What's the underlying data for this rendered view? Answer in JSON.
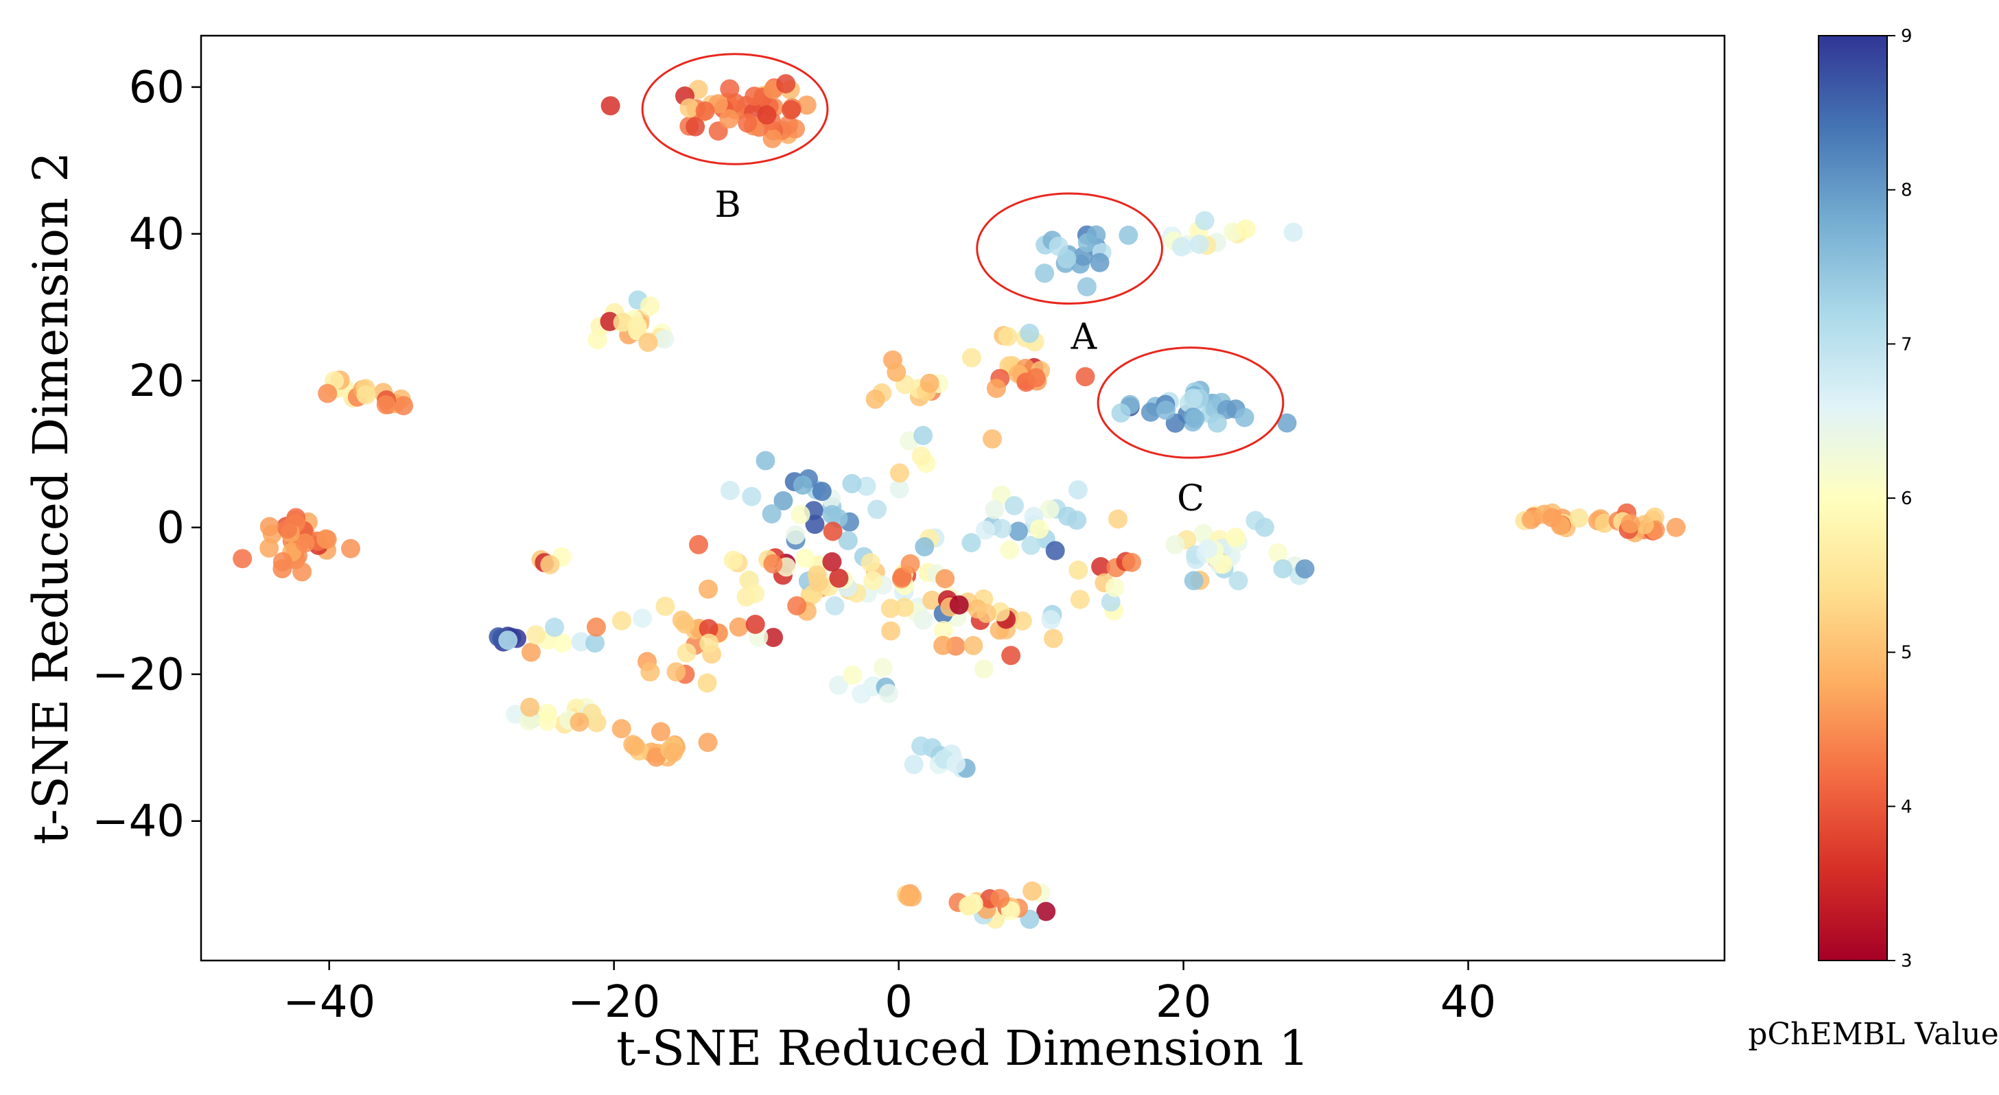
{
  "chart_data": {
    "type": "scatter",
    "xlabel": "t-SNE Reduced Dimension 1",
    "ylabel": "t-SNE Reduced Dimension 2",
    "xlim": [
      -49,
      58
    ],
    "ylim": [
      -59,
      67
    ],
    "xticks": [
      -40,
      -20,
      0,
      20,
      40
    ],
    "yticks": [
      60,
      40,
      20,
      0,
      -20,
      -40
    ],
    "grid": false,
    "colorbar": {
      "label": "pChEMBL Value",
      "min": 3,
      "max": 9,
      "ticks": [
        3,
        4,
        5,
        6,
        7,
        8,
        9
      ],
      "colormap": "RdYlBu",
      "stops": [
        "#a50026",
        "#d73027",
        "#f46d43",
        "#fdae61",
        "#fee090",
        "#ffffbf",
        "#e0f3f8",
        "#abd9e9",
        "#74add1",
        "#4575b4",
        "#313695"
      ]
    },
    "annotations": [
      {
        "label": "A",
        "center": [
          12,
          38
        ],
        "radius": [
          6.5,
          7.5
        ],
        "label_pos": [
          13,
          26
        ]
      },
      {
        "label": "B",
        "center": [
          -11.5,
          57
        ],
        "radius": [
          6.5,
          7.5
        ],
        "label_pos": [
          -12,
          44
        ]
      },
      {
        "label": "C",
        "center": [
          20.5,
          17
        ],
        "radius": [
          6.5,
          7.5
        ],
        "label_pos": [
          20.5,
          4
        ]
      }
    ],
    "clusters": [
      {
        "x": -11.5,
        "y": 56.5,
        "sx": 3.0,
        "sy": 2.0,
        "n": 45,
        "c": 4.3,
        "cs": 0.4
      },
      {
        "x": 12,
        "y": 37.5,
        "sx": 1.3,
        "sy": 1.3,
        "n": 16,
        "c": 7.8,
        "cs": 0.4
      },
      {
        "x": 22,
        "y": 39,
        "sx": 2.2,
        "sy": 0.9,
        "n": 14,
        "c": 6.3,
        "cs": 0.5
      },
      {
        "x": 20.5,
        "y": 16,
        "sx": 2.3,
        "sy": 1.3,
        "n": 30,
        "c": 7.6,
        "cs": 0.4
      },
      {
        "x": 9,
        "y": 21,
        "sx": 1.6,
        "sy": 1.1,
        "n": 14,
        "c": 4.6,
        "cs": 0.4
      },
      {
        "x": 9,
        "y": 26,
        "sx": 0.6,
        "sy": 0.5,
        "n": 5,
        "c": 6.0,
        "cs": 0.5
      },
      {
        "x": -18.5,
        "y": 27.5,
        "sx": 1.5,
        "sy": 1.8,
        "n": 20,
        "c": 5.5,
        "cs": 0.9
      },
      {
        "x": -38.5,
        "y": 19,
        "sx": 0.9,
        "sy": 0.9,
        "n": 12,
        "c": 5.3,
        "cs": 0.4
      },
      {
        "x": -35.5,
        "y": 17,
        "sx": 0.6,
        "sy": 0.5,
        "n": 6,
        "c": 4.6,
        "cs": 0.3
      },
      {
        "x": -42,
        "y": -2,
        "sx": 1.4,
        "sy": 1.6,
        "n": 35,
        "c": 4.5,
        "cs": 0.3
      },
      {
        "x": 46,
        "y": 1,
        "sx": 1.2,
        "sy": 0.7,
        "n": 14,
        "c": 4.8,
        "cs": 0.4
      },
      {
        "x": 52,
        "y": 0.5,
        "sx": 1.1,
        "sy": 0.7,
        "n": 16,
        "c": 4.6,
        "cs": 0.4
      },
      {
        "x": -28,
        "y": -15,
        "sx": 0.6,
        "sy": 0.4,
        "n": 7,
        "c": 8.6,
        "cs": 0.3
      },
      {
        "x": -24.5,
        "y": -15.5,
        "sx": 1.6,
        "sy": 1.0,
        "n": 8,
        "c": 7.0,
        "cs": 1.2
      },
      {
        "x": -23.5,
        "y": -25.5,
        "sx": 1.6,
        "sy": 1.0,
        "n": 16,
        "c": 5.8,
        "cs": 0.6
      },
      {
        "x": -17,
        "y": -30.5,
        "sx": 1.3,
        "sy": 0.9,
        "n": 16,
        "c": 4.9,
        "cs": 0.4
      },
      {
        "x": 3,
        "y": -32,
        "sx": 0.9,
        "sy": 0.7,
        "n": 12,
        "c": 6.9,
        "cs": 0.4
      },
      {
        "x": 7.5,
        "y": -51,
        "sx": 1.4,
        "sy": 1.3,
        "n": 18,
        "c": 5.5,
        "cs": 1.0
      },
      {
        "x": 0.5,
        "y": -50,
        "sx": 0.5,
        "sy": 0.4,
        "n": 4,
        "c": 4.5,
        "cs": 0.4
      },
      {
        "x": 23,
        "y": -4,
        "sx": 2.3,
        "sy": 2.0,
        "n": 30,
        "c": 6.5,
        "cs": 0.7
      },
      {
        "x": 8.5,
        "y": 2,
        "sx": 2.2,
        "sy": 2.2,
        "n": 20,
        "c": 7.0,
        "cs": 0.5
      },
      {
        "x": -6,
        "y": 3,
        "sx": 3.0,
        "sy": 2.5,
        "n": 26,
        "c": 7.3,
        "cs": 0.8
      },
      {
        "x": -6,
        "y": -7,
        "sx": 3.5,
        "sy": 3.5,
        "n": 40,
        "c": 5.5,
        "cs": 1.3
      },
      {
        "x": 2,
        "y": -8,
        "sx": 3.5,
        "sy": 4.0,
        "n": 28,
        "c": 5.6,
        "cs": 1.2
      },
      {
        "x": -14,
        "y": -14,
        "sx": 3.5,
        "sy": 3.5,
        "n": 24,
        "c": 5.0,
        "cs": 0.8
      },
      {
        "x": 8,
        "y": -14,
        "sx": 3.5,
        "sy": 3.0,
        "n": 20,
        "c": 5.0,
        "cs": 0.9
      },
      {
        "x": 2,
        "y": 20,
        "sx": 2.0,
        "sy": 2.0,
        "n": 12,
        "c": 5.6,
        "cs": 0.6
      },
      {
        "x": -3,
        "y": -22,
        "sx": 1.8,
        "sy": 1.5,
        "n": 8,
        "c": 6.6,
        "cs": 0.5
      },
      {
        "x": 14,
        "y": -5,
        "sx": 1.5,
        "sy": 5.0,
        "n": 12,
        "c": 5.8,
        "cs": 1.2
      },
      {
        "x": -25,
        "y": -5,
        "sx": 2.0,
        "sy": 1.0,
        "n": 5,
        "c": 5.0,
        "cs": 1.0
      },
      {
        "x": 3,
        "y": 10,
        "sx": 2.0,
        "sy": 2.0,
        "n": 6,
        "c": 6.0,
        "cs": 0.8
      }
    ]
  }
}
